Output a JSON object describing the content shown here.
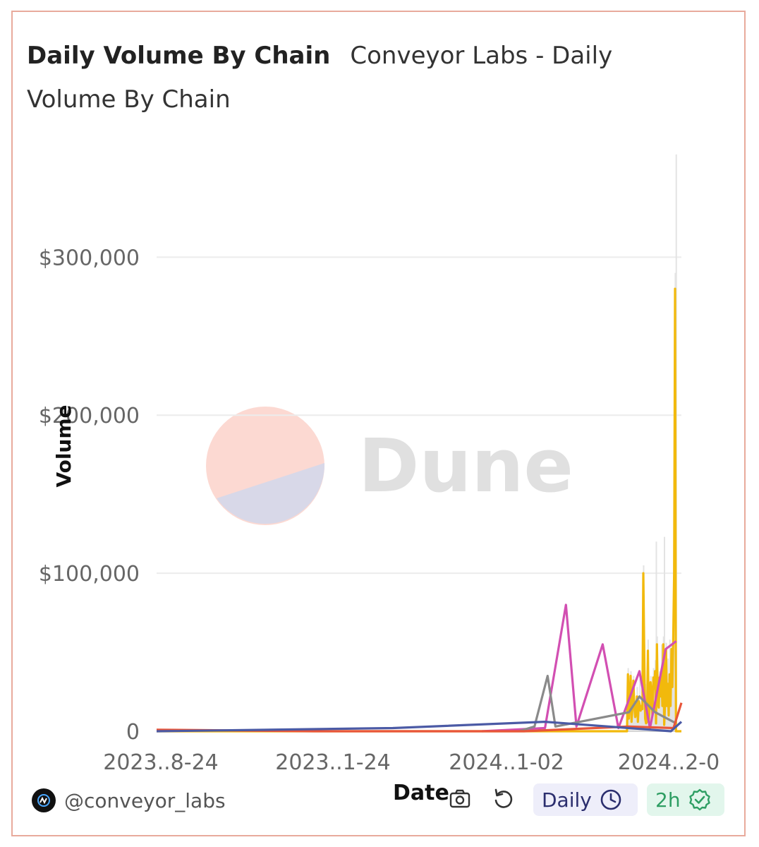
{
  "header": {
    "title": "Daily Volume By Chain",
    "subtitle": "Conveyor Labs - Daily Volume By Chain"
  },
  "watermark": {
    "text": "Dune",
    "colors": [
      "#fcd9d2",
      "#d8d8e8"
    ]
  },
  "footer": {
    "handle": "@conveyor_labs",
    "date_label": "Date",
    "interval_label": "Daily",
    "freshness_label": "2h",
    "icons": [
      "camera-icon",
      "refresh-icon",
      "clock-icon",
      "check-badge-icon"
    ]
  },
  "chart_data": {
    "type": "line",
    "ylabel": "Volume",
    "xlabel": "Date",
    "ylim": [
      0,
      360000
    ],
    "y_ticks": [
      {
        "value": 0,
        "label": "0"
      },
      {
        "value": 100000,
        "label": "$100,000"
      },
      {
        "value": 200000,
        "label": "$200,000"
      },
      {
        "value": 300000,
        "label": "$300,000"
      }
    ],
    "x_ticks": [
      "2023..8-24",
      "2023..1-24",
      "2024..1-02",
      "2024..2-0"
    ],
    "grid": true,
    "colors": {
      "yellow": "#f2b90c",
      "magenta": "#d24fb2",
      "gray": "#8a8a8a",
      "red": "#e8553a",
      "navy": "#4b5aa5",
      "bar": "#e3e3e3"
    },
    "total_bars": [
      0,
      0,
      0,
      0,
      0,
      0,
      0,
      0,
      0,
      0,
      0,
      0,
      0,
      0,
      0,
      0,
      0,
      0,
      0,
      0,
      0,
      0,
      0,
      0,
      0,
      0,
      0,
      0,
      0,
      0,
      0,
      0,
      0,
      0,
      0,
      0,
      0,
      0,
      0,
      0,
      0,
      0,
      0,
      0,
      0,
      0,
      0,
      0,
      0,
      0,
      0,
      0,
      0,
      0,
      0,
      0,
      0,
      0,
      0,
      0,
      0,
      0,
      0,
      0,
      0,
      0,
      0,
      0,
      0,
      0,
      0,
      0,
      0,
      0,
      0,
      0,
      0,
      0,
      0,
      0,
      0,
      0,
      0,
      0,
      0,
      0,
      0,
      0,
      0,
      0,
      0,
      0,
      0,
      0,
      0,
      0,
      0,
      0,
      0,
      0,
      0,
      0,
      0,
      0,
      0,
      0,
      0,
      0,
      0,
      0,
      0,
      0,
      0,
      0,
      0,
      0,
      0,
      0,
      0,
      0,
      0,
      0,
      0,
      0,
      0,
      0,
      0,
      0,
      0,
      0,
      0,
      0,
      0,
      0,
      0,
      0,
      0,
      0,
      0,
      0,
      0,
      0,
      0,
      0,
      0,
      0,
      0,
      0,
      0,
      0,
      0,
      0,
      0,
      0,
      0,
      0,
      0,
      0,
      0,
      0,
      0,
      0,
      0,
      0,
      0,
      0,
      0,
      0,
      0,
      0,
      0,
      0,
      0,
      0,
      0,
      0,
      0,
      0,
      0,
      0,
      0,
      0,
      0,
      0,
      0,
      0,
      0,
      0,
      0,
      0,
      0,
      0,
      0,
      0,
      0,
      0,
      0,
      0,
      0,
      0,
      0,
      0,
      0,
      0,
      0,
      0,
      0,
      0,
      0,
      0,
      0,
      0,
      0,
      0,
      0,
      0,
      0,
      0,
      0,
      0,
      0,
      0,
      0,
      0,
      0,
      0,
      0,
      0,
      0,
      0,
      0,
      0,
      0,
      0,
      0,
      0,
      0,
      0,
      0,
      0,
      0,
      0,
      0,
      0,
      0,
      0,
      0,
      0,
      0,
      0,
      0,
      0,
      0,
      0,
      0,
      0,
      0,
      0,
      0,
      0,
      0,
      0,
      0,
      0,
      0,
      0,
      0,
      0,
      0,
      0,
      0,
      0,
      0,
      0,
      0,
      0,
      0,
      0,
      0,
      0,
      0,
      0,
      0,
      0,
      0,
      0,
      0,
      0,
      0,
      0,
      0,
      0,
      0,
      0,
      0,
      0,
      0,
      0,
      0,
      0,
      0,
      0,
      0,
      0,
      0,
      0,
      0,
      0,
      0,
      0,
      0,
      0,
      0,
      0,
      0,
      0,
      0,
      0,
      0,
      0,
      0,
      0,
      0,
      0,
      0,
      0,
      0,
      0,
      0,
      0,
      0,
      0,
      0,
      0,
      0,
      0,
      0,
      0,
      0,
      0,
      0,
      0,
      0,
      0,
      0,
      0,
      0,
      0,
      0,
      0,
      0,
      0,
      0,
      0,
      0,
      0,
      0,
      0,
      0,
      0,
      0,
      0,
      0,
      0,
      0,
      0,
      0,
      0,
      0,
      0,
      0,
      0,
      0,
      0,
      0,
      0,
      0,
      0,
      0,
      0,
      0,
      0,
      0,
      0,
      0,
      0,
      0,
      0,
      0,
      0,
      0,
      0,
      0,
      0,
      0,
      0,
      0,
      0,
      0,
      0,
      0,
      0,
      0,
      0,
      0,
      0,
      0,
      0,
      0,
      0,
      0,
      0,
      0,
      0,
      0,
      0,
      0,
      0,
      0,
      0,
      0,
      0,
      0,
      0,
      0,
      0,
      0,
      0,
      0,
      0,
      0,
      0,
      0,
      0,
      0,
      0,
      0,
      0,
      0,
      0,
      0,
      0,
      0,
      0,
      0,
      0,
      0,
      0,
      0,
      0,
      0,
      0,
      0,
      0,
      0,
      0,
      0,
      0,
      0,
      0,
      0,
      0,
      0,
      0,
      0,
      0,
      0,
      0,
      0,
      0,
      0,
      0,
      0,
      0,
      0,
      0,
      0,
      0,
      0,
      0,
      0,
      0,
      0,
      0,
      0,
      0,
      0,
      0,
      0,
      0,
      0,
      0,
      0,
      0,
      0,
      0,
      0,
      0,
      0,
      0,
      0,
      0,
      0,
      0,
      0,
      0,
      0,
      0,
      0,
      0,
      0,
      0,
      0,
      0,
      0,
      0,
      0,
      0,
      0,
      0,
      40000,
      12000,
      25000,
      38000,
      10000,
      18000,
      35000,
      20000,
      12000,
      15000,
      28000,
      8000,
      22000,
      33000,
      16000,
      20000,
      45000,
      105000,
      55000,
      30000,
      18000,
      25000,
      58000,
      10000,
      20000,
      35000,
      26000,
      14000,
      40000,
      30000,
      45000,
      120000,
      60000,
      22000,
      18000,
      38000,
      28000,
      55000,
      20000,
      60000,
      123000,
      32000,
      56000,
      40000,
      46000,
      24000,
      58000,
      50000,
      55000,
      30000,
      60000,
      165000,
      290000,
      365000,
      0,
      0,
      0,
      0,
      0,
      0
    ],
    "series": [
      {
        "color_key": "yellow",
        "values": [
          0,
          0,
          0,
          0,
          0,
          0,
          0,
          0,
          0,
          0,
          0,
          0,
          0,
          0,
          0,
          0,
          0,
          0,
          0,
          0,
          0,
          0,
          0,
          0,
          0,
          0,
          0,
          0,
          0,
          0,
          0,
          0,
          0,
          0,
          0,
          0,
          0,
          0,
          0,
          0,
          0,
          0,
          0,
          0,
          0,
          0,
          0,
          0,
          0,
          0,
          0,
          0,
          0,
          0,
          0,
          0,
          0,
          0,
          0,
          0,
          0,
          0,
          0,
          0,
          0,
          0,
          0,
          0,
          0,
          0,
          0,
          0,
          0,
          0,
          0,
          0,
          0,
          0,
          0,
          0,
          0,
          0,
          0,
          0,
          0,
          0,
          0,
          0,
          0,
          0,
          0,
          0,
          0,
          0,
          0,
          0,
          0,
          0,
          0,
          0,
          0,
          0,
          0,
          0,
          0,
          0,
          0,
          0,
          0,
          0,
          0,
          0,
          0,
          0,
          0,
          0,
          0,
          0,
          0,
          0,
          0,
          0,
          0,
          0,
          0,
          0,
          0,
          0,
          0,
          0,
          0,
          0,
          0,
          0,
          0,
          0,
          0,
          0,
          0,
          0,
          0,
          0,
          0,
          0,
          0,
          0,
          0,
          0,
          0,
          0,
          0,
          0,
          0,
          0,
          0,
          0,
          0,
          0,
          0,
          0,
          0,
          0,
          0,
          0,
          0,
          0,
          0,
          0,
          0,
          0,
          0,
          0,
          0,
          0,
          0,
          0,
          0,
          0,
          0,
          0,
          0,
          0,
          0,
          0,
          0,
          0,
          0,
          0,
          0,
          0,
          0,
          0,
          0,
          0,
          0,
          0,
          0,
          0,
          0,
          0,
          0,
          0,
          0,
          0,
          0,
          0,
          0,
          0,
          0,
          0,
          0,
          0,
          0,
          0,
          0,
          0,
          0,
          0,
          0,
          0,
          0,
          0,
          0,
          0,
          0,
          0,
          0,
          0,
          0,
          0,
          0,
          0,
          0,
          0,
          0,
          0,
          0,
          0,
          0,
          0,
          0,
          0,
          0,
          0,
          0,
          0,
          0,
          0,
          0,
          0,
          0,
          0,
          0,
          0,
          0,
          0,
          0,
          0,
          0,
          0,
          0,
          0,
          0,
          0,
          0,
          0,
          0,
          0,
          0,
          0,
          0,
          0,
          0,
          0,
          0,
          0,
          0,
          0,
          0,
          0,
          0,
          0,
          0,
          0,
          0,
          0,
          0,
          0,
          0,
          0,
          0,
          0,
          0,
          0,
          0,
          0,
          0,
          0,
          0,
          0,
          0,
          0,
          0,
          0,
          0,
          0,
          0,
          0,
          0,
          0,
          0,
          0,
          0,
          0,
          0,
          0,
          0,
          0,
          0,
          0,
          0,
          0,
          0,
          0,
          0,
          0,
          0,
          0,
          0,
          0,
          0,
          0,
          0,
          0,
          0,
          0,
          0,
          0,
          0,
          0,
          0,
          0,
          0,
          0,
          0,
          0,
          0,
          0,
          0,
          0,
          0,
          0,
          0,
          0,
          0,
          0,
          0,
          0,
          0,
          0,
          0,
          0,
          0,
          0,
          0,
          0,
          0,
          0,
          0,
          0,
          0,
          0,
          0,
          0,
          0,
          0,
          0,
          0,
          0,
          0,
          0,
          0,
          0,
          0,
          0,
          0,
          0,
          0,
          0,
          0,
          0,
          0,
          0,
          0,
          0,
          0,
          0,
          0,
          0,
          0,
          0,
          0,
          0,
          0,
          0,
          0,
          0,
          0,
          0,
          0,
          0,
          0,
          0,
          0,
          0,
          0,
          0,
          0,
          0,
          0,
          0,
          0,
          0,
          0,
          0,
          0,
          0,
          0,
          0,
          0,
          0,
          0,
          0,
          0,
          0,
          0,
          0,
          0,
          0,
          0,
          0,
          0,
          0,
          0,
          0,
          0,
          0,
          0,
          0,
          0,
          0,
          0,
          0,
          0,
          0,
          0,
          0,
          0,
          0,
          0,
          0,
          0,
          0,
          0,
          0,
          0,
          0,
          0,
          0,
          0,
          0,
          0,
          0,
          0,
          0,
          0,
          0,
          0,
          0,
          0,
          0,
          0,
          0,
          0,
          0,
          0,
          0,
          0,
          0,
          0,
          0,
          0,
          0,
          0,
          0,
          0,
          0,
          0,
          0,
          0,
          0,
          0,
          0,
          0,
          0,
          0,
          0,
          0,
          0,
          0,
          0,
          0,
          0,
          0,
          0,
          0,
          0,
          0,
          0,
          0,
          36000,
          8000,
          20000,
          35000,
          6000,
          15000,
          32000,
          16000,
          9000,
          12000,
          22000,
          6000,
          19000,
          17000,
          13000,
          16000,
          14000,
          100000,
          50000,
          8000,
          5000,
          6000,
          51000,
          6000,
          15000,
          31000,
          23000,
          10000,
          34000,
          27000,
          38000,
          5000,
          55000,
          18000,
          15000,
          34000,
          22000,
          38000,
          16000,
          55000,
          4000,
          18000,
          52000,
          16000,
          30000,
          10000,
          36000,
          16000,
          52000,
          28000,
          58000,
          100000,
          280000,
          0,
          0,
          0,
          0,
          0,
          0,
          0
        ]
      }
    ],
    "secondary_series": [
      {
        "color_key": "magenta",
        "points": [
          [
            0.62,
            0
          ],
          [
            0.74,
            2000
          ],
          [
            0.78,
            80000
          ],
          [
            0.8,
            3000
          ],
          [
            0.85,
            55000
          ],
          [
            0.88,
            2000
          ],
          [
            0.92,
            38000
          ],
          [
            0.94,
            2000
          ],
          [
            0.97,
            52000
          ],
          [
            0.99,
            57000
          ]
        ]
      },
      {
        "color_key": "gray",
        "points": [
          [
            0.69,
            0
          ],
          [
            0.72,
            3000
          ],
          [
            0.745,
            35000
          ],
          [
            0.76,
            3000
          ],
          [
            0.9,
            12000
          ],
          [
            0.92,
            22000
          ],
          [
            0.95,
            12000
          ],
          [
            0.99,
            5000
          ]
        ]
      },
      {
        "color_key": "red",
        "points": [
          [
            0.0,
            1000
          ],
          [
            0.3,
            0
          ],
          [
            0.7,
            0
          ],
          [
            0.9,
            3000
          ],
          [
            0.985,
            2000
          ],
          [
            1.0,
            18000
          ]
        ]
      },
      {
        "color_key": "navy",
        "points": [
          [
            0.0,
            0
          ],
          [
            0.45,
            2000
          ],
          [
            0.74,
            6000
          ],
          [
            0.78,
            5000
          ],
          [
            0.98,
            0
          ],
          [
            1.0,
            6000
          ]
        ]
      }
    ]
  }
}
